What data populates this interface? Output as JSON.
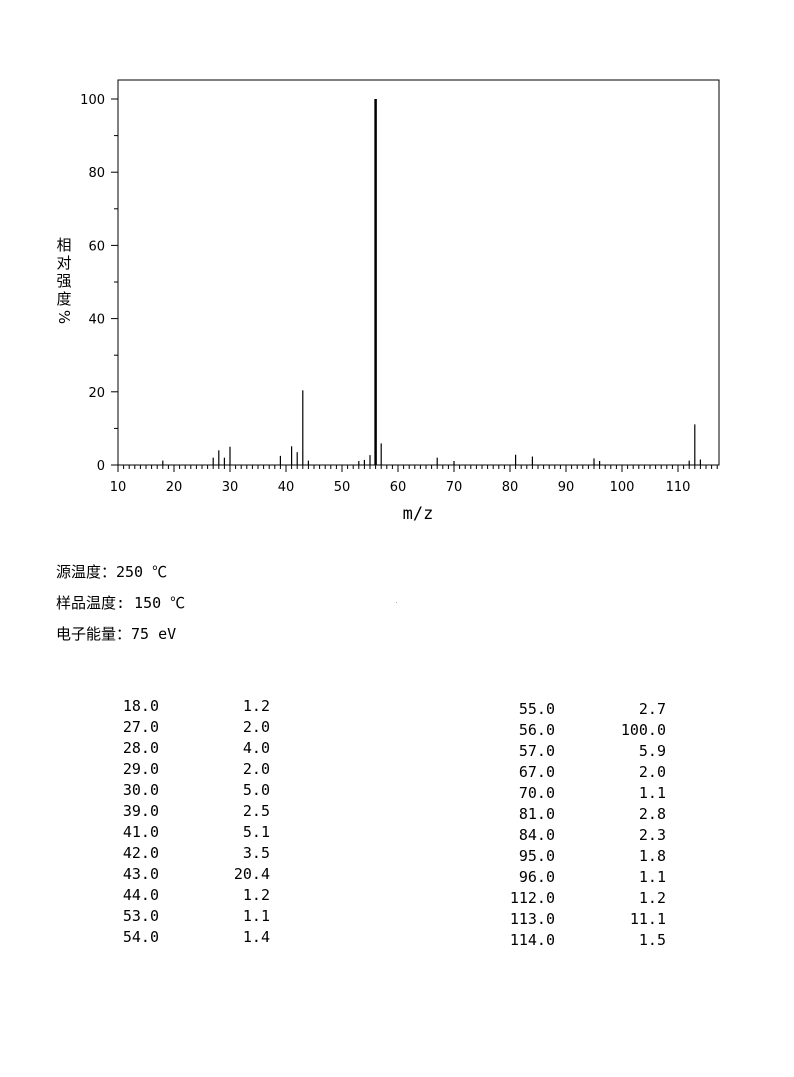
{
  "chart_data": {
    "type": "bar",
    "xlabel": "m/z",
    "ylabel": "相对强度%",
    "xlim": [
      10,
      117
    ],
    "ylim": [
      0,
      105
    ],
    "xticks": [
      10,
      20,
      30,
      40,
      50,
      60,
      70,
      80,
      90,
      100,
      110
    ],
    "yticks": [
      0,
      20,
      40,
      60,
      80,
      100
    ],
    "grid": false,
    "x": [
      18,
      27,
      28,
      29,
      30,
      39,
      41,
      42,
      43,
      44,
      53,
      54,
      55,
      56,
      57,
      67,
      70,
      81,
      84,
      95,
      96,
      112,
      113,
      114
    ],
    "values": [
      1.2,
      2.0,
      4.0,
      2.0,
      5.0,
      2.5,
      5.1,
      3.5,
      20.4,
      1.2,
      1.1,
      1.4,
      2.7,
      100.0,
      5.9,
      2.0,
      1.1,
      2.8,
      2.3,
      1.8,
      1.1,
      1.2,
      11.1,
      1.5
    ]
  },
  "conditions": [
    "源温度：250 ℃",
    "样品温度: 150 ℃",
    "电子能量：75 eV"
  ],
  "peak_table": {
    "left": [
      [
        "18.0",
        "1.2"
      ],
      [
        "27.0",
        "2.0"
      ],
      [
        "28.0",
        "4.0"
      ],
      [
        "29.0",
        "2.0"
      ],
      [
        "30.0",
        "5.0"
      ],
      [
        "39.0",
        "2.5"
      ],
      [
        "41.0",
        "5.1"
      ],
      [
        "42.0",
        "3.5"
      ],
      [
        "43.0",
        "20.4"
      ],
      [
        "44.0",
        "1.2"
      ],
      [
        "53.0",
        "1.1"
      ],
      [
        "54.0",
        "1.4"
      ]
    ],
    "right": [
      [
        "55.0",
        "2.7"
      ],
      [
        "56.0",
        "100.0"
      ],
      [
        "57.0",
        "5.9"
      ],
      [
        "67.0",
        "2.0"
      ],
      [
        "70.0",
        "1.1"
      ],
      [
        "81.0",
        "2.8"
      ],
      [
        "84.0",
        "2.3"
      ],
      [
        "95.0",
        "1.8"
      ],
      [
        "96.0",
        "1.1"
      ],
      [
        "112.0",
        "1.2"
      ],
      [
        "113.0",
        "11.1"
      ],
      [
        "114.0",
        "1.5"
      ]
    ]
  }
}
